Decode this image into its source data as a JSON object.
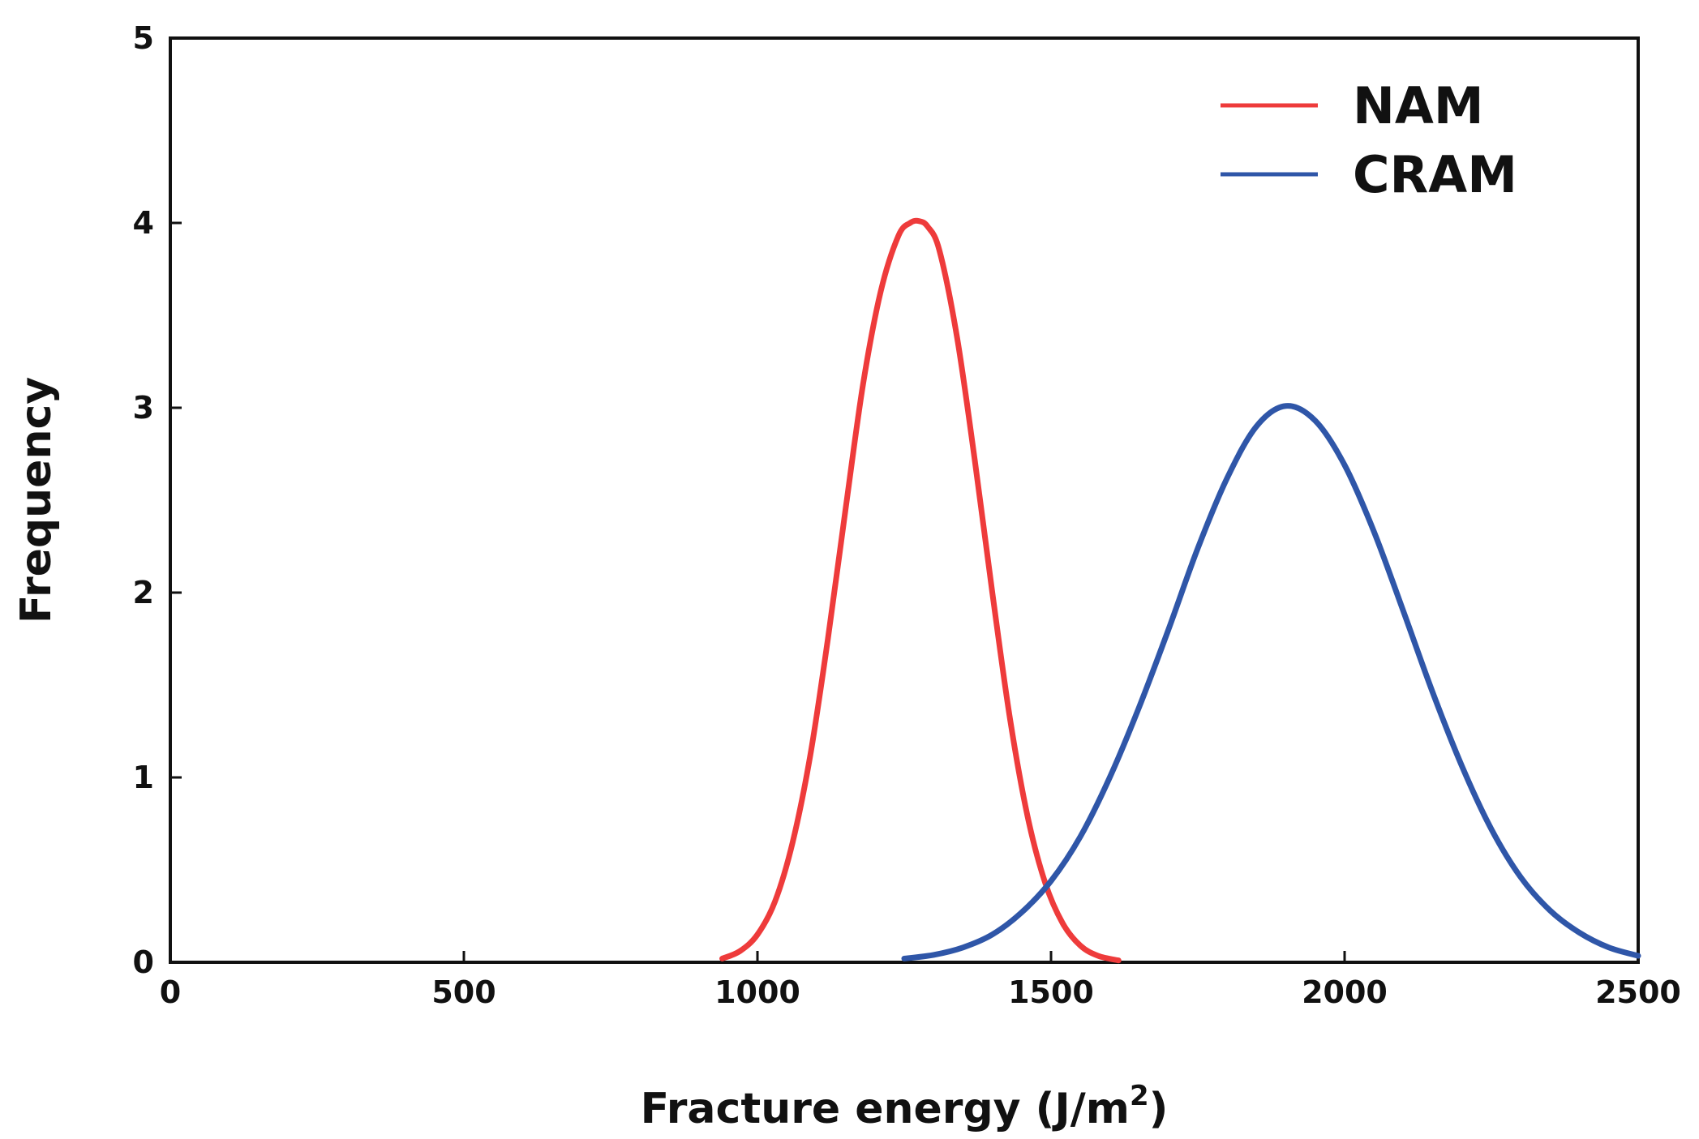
{
  "chart_data": {
    "type": "line",
    "title": "",
    "xlabel": "Fracture energy (J/m",
    "xlabel_superscript": "2",
    "xlabel_suffix": ")",
    "ylabel": "Frequency",
    "xlim": [
      0,
      2500
    ],
    "ylim": [
      0,
      5
    ],
    "xticks": [
      0,
      500,
      1000,
      1500,
      2000,
      2500
    ],
    "yticks": [
      0,
      1,
      2,
      3,
      4,
      5
    ],
    "grid": false,
    "legend_position": "top-right",
    "series": [
      {
        "name": "NAM",
        "color": "#ee3b3b",
        "x": [
          940,
          970,
          1000,
          1030,
          1060,
          1090,
          1120,
          1150,
          1180,
          1210,
          1240,
          1260,
          1275,
          1290,
          1310,
          1340,
          1370,
          1400,
          1430,
          1460,
          1490,
          1520,
          1550,
          1580,
          1615
        ],
        "y": [
          0.02,
          0.06,
          0.15,
          0.33,
          0.65,
          1.12,
          1.75,
          2.45,
          3.13,
          3.63,
          3.93,
          4.0,
          4.01,
          3.98,
          3.85,
          3.38,
          2.72,
          2.0,
          1.32,
          0.79,
          0.43,
          0.21,
          0.09,
          0.035,
          0.01
        ]
      },
      {
        "name": "CRAM",
        "color": "#2f56a8",
        "x": [
          1250,
          1300,
          1350,
          1400,
          1450,
          1500,
          1550,
          1600,
          1650,
          1700,
          1750,
          1800,
          1850,
          1900,
          1950,
          2000,
          2050,
          2100,
          2150,
          2200,
          2250,
          2300,
          2350,
          2400,
          2450,
          2500
        ],
        "y": [
          0.02,
          0.04,
          0.08,
          0.15,
          0.27,
          0.44,
          0.68,
          1.0,
          1.38,
          1.8,
          2.24,
          2.62,
          2.9,
          3.01,
          2.93,
          2.69,
          2.33,
          1.9,
          1.46,
          1.06,
          0.72,
          0.46,
          0.28,
          0.16,
          0.08,
          0.035
        ]
      }
    ]
  }
}
